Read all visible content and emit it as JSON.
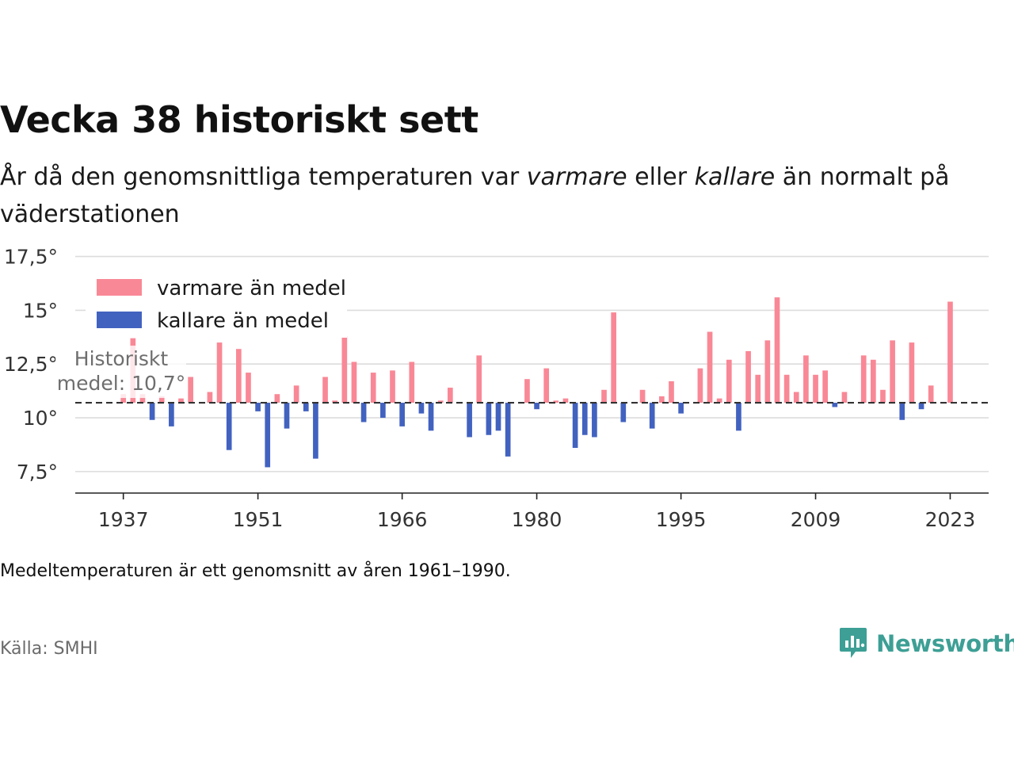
{
  "header": {
    "title": "Vecka 38 historiskt sett",
    "subtitle_pre": "År då den genomsnittliga temperaturen var ",
    "subtitle_warm": "varmare",
    "subtitle_mid": " eller ",
    "subtitle_cold": "kallare",
    "subtitle_post": " än normalt på väderstationen"
  },
  "chart_data": {
    "type": "bar",
    "baseline": 10.7,
    "ylim": [
      6.5,
      18
    ],
    "xlim": [
      1932,
      2027
    ],
    "yticks": [
      7.5,
      10,
      12.5,
      15,
      17.5
    ],
    "ytick_labels": [
      "7,5°",
      "10°",
      "12,5°",
      "15°",
      "17,5°"
    ],
    "xticks": [
      1937,
      1951,
      1966,
      1980,
      1995,
      2009,
      2023
    ],
    "xtick_labels": [
      "1937",
      "1951",
      "1966",
      "1980",
      "1995",
      "2009",
      "2023"
    ],
    "grid": true,
    "legend_position": "top-left",
    "legend": [
      {
        "label": "varmare än medel",
        "color": "#f98896"
      },
      {
        "label": "kallare än medel",
        "color": "#4262c0"
      }
    ],
    "colors": {
      "warm": "#f98896",
      "cold": "#4262c0",
      "baseline": "#333333"
    },
    "annotation": [
      "Historiskt",
      "medel: 10,7°"
    ],
    "years": [
      1937,
      1938,
      1939,
      1940,
      1941,
      1942,
      1943,
      1944,
      1945,
      1946,
      1947,
      1948,
      1949,
      1950,
      1951,
      1952,
      1953,
      1954,
      1955,
      1956,
      1957,
      1958,
      1959,
      1960,
      1961,
      1962,
      1963,
      1964,
      1965,
      1966,
      1967,
      1968,
      1969,
      1970,
      1971,
      1972,
      1973,
      1974,
      1975,
      1976,
      1977,
      1978,
      1979,
      1980,
      1981,
      1982,
      1983,
      1984,
      1985,
      1986,
      1987,
      1988,
      1989,
      1990,
      1991,
      1992,
      1993,
      1994,
      1995,
      1996,
      1997,
      1998,
      1999,
      2000,
      2001,
      2002,
      2003,
      2004,
      2005,
      2006,
      2007,
      2008,
      2009,
      2010,
      2011,
      2012,
      2013,
      2014,
      2015,
      2016,
      2017,
      2018,
      2019,
      2020,
      2021,
      2022,
      2023
    ],
    "values": [
      11.1,
      13.7,
      11.1,
      9.9,
      11.0,
      9.6,
      10.9,
      11.9,
      10.7,
      11.2,
      13.5,
      8.5,
      13.2,
      12.1,
      10.3,
      7.7,
      11.1,
      9.5,
      11.5,
      10.3,
      8.1,
      11.9,
      10.8,
      13.8,
      12.6,
      9.8,
      12.1,
      10.0,
      12.2,
      9.6,
      12.6,
      10.2,
      9.4,
      10.8,
      11.4,
      10.7,
      9.1,
      12.9,
      9.2,
      9.4,
      8.2,
      10.7,
      11.8,
      10.4,
      12.3,
      10.8,
      10.9,
      8.6,
      9.2,
      9.1,
      11.3,
      14.9,
      9.8,
      10.7,
      11.3,
      9.5,
      11.0,
      11.7,
      10.2,
      10.7,
      12.3,
      14.0,
      10.9,
      12.7,
      9.4,
      13.1,
      12.0,
      13.6,
      15.6,
      12.0,
      11.2,
      12.9,
      12.0,
      12.2,
      10.5,
      11.2,
      10.7,
      12.9,
      12.7,
      11.3,
      13.6,
      9.9,
      13.5,
      10.4,
      11.5,
      10.7,
      15.4
    ]
  },
  "footnote": "Medeltemperaturen är ett genomsnitt av åren 1961–1990.",
  "source": "Källa: SMHI",
  "brand": {
    "name": "Newsworthy",
    "icon": "newsworthy-logo-icon",
    "color": "#3d9f95"
  }
}
